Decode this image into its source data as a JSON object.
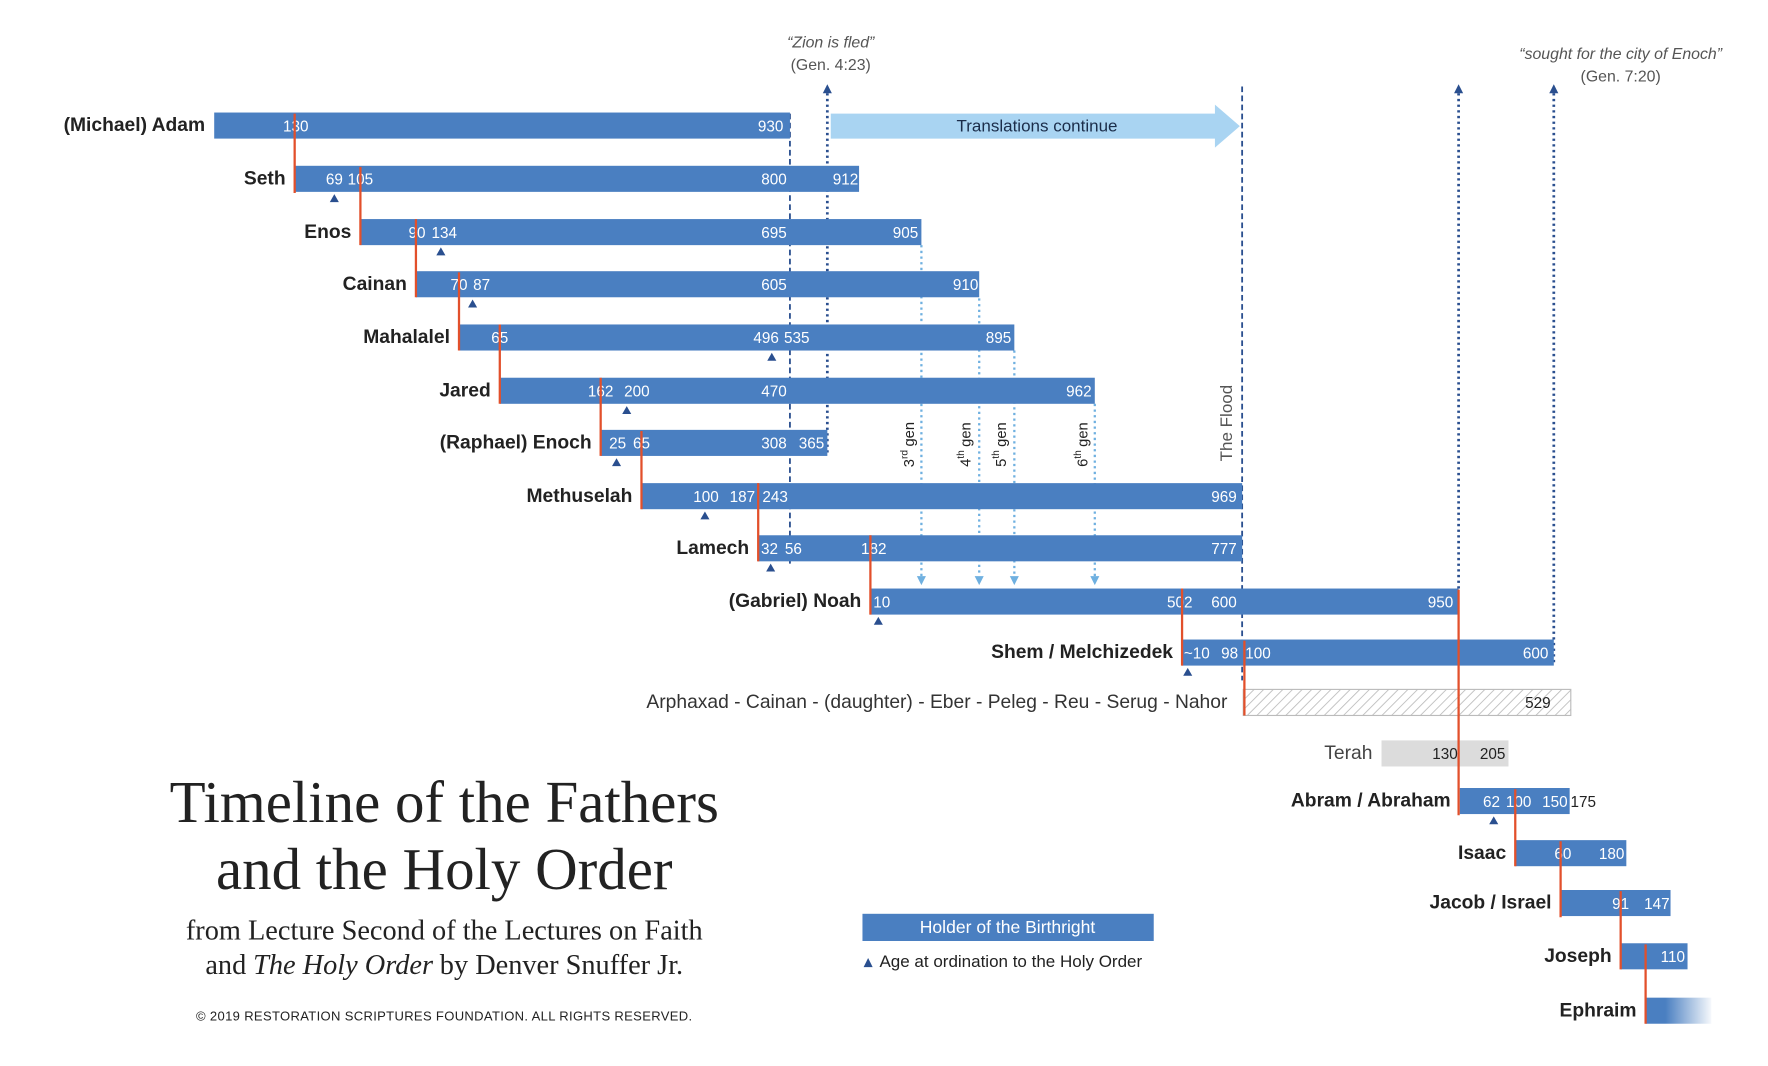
{
  "title": [
    "Timeline of the Fathers",
    "and the Holy Order"
  ],
  "subtitle": {
    "line1": "from Lecture Second of the Lectures on Faith",
    "line2": [
      "and",
      "The Holy Order",
      "by Denver Snuffer Jr."
    ]
  },
  "copyright": "© 2019 RESTORATION SCRIPTURES FOUNDATION. ALL RIGHTS RESERVED.",
  "annotations": {
    "zion": {
      "quote": "“Zion is fled”",
      "ref": "(Gen. 4:23)"
    },
    "city": {
      "quote": "“sought for the city of Enoch”",
      "ref": "(Gen. 7:20)"
    },
    "translations": "Translations continue",
    "flood": "The Flood",
    "generations": [
      {
        "num": "3",
        "suffix": "rd",
        "word": "gen"
      },
      {
        "num": "4",
        "suffix": "th",
        "word": "gen"
      },
      {
        "num": "5",
        "suffix": "th",
        "word": "gen"
      },
      {
        "num": "6",
        "suffix": "th",
        "word": "gen"
      }
    ]
  },
  "legend": {
    "birthright": "Holder of the Birthright",
    "ordination": "Age at ordination to the Holy Order"
  },
  "rows": [
    {
      "name": "(Michael) Adam",
      "labels": [
        130,
        930
      ]
    },
    {
      "name": "Seth",
      "labels": [
        69,
        105,
        800,
        912
      ]
    },
    {
      "name": "Enos",
      "labels": [
        90,
        134,
        695,
        905
      ]
    },
    {
      "name": "Cainan",
      "labels": [
        70,
        87,
        605,
        910
      ]
    },
    {
      "name": "Mahalalel",
      "labels": [
        65,
        496,
        535,
        895
      ]
    },
    {
      "name": "Jared",
      "labels": [
        162,
        200,
        470,
        962
      ]
    },
    {
      "name": "(Raphael) Enoch",
      "labels": [
        25,
        65,
        308,
        365
      ]
    },
    {
      "name": "Methuselah",
      "labels": [
        100,
        187,
        243,
        969
      ]
    },
    {
      "name": "Lamech",
      "labels": [
        32,
        56,
        182,
        777
      ]
    },
    {
      "name": "(Gabriel) Noah",
      "labels": [
        10,
        502,
        600,
        950
      ]
    },
    {
      "name": "Shem / Melchizedek",
      "labels": [
        "~10",
        98,
        100,
        600
      ]
    },
    {
      "name": "Arphaxad - Cainan - (daughter) - Eber - Peleg - Reu - Serug - Nahor",
      "labels": [
        529
      ]
    },
    {
      "name": "Terah",
      "labels": [
        130,
        205
      ]
    },
    {
      "name": "Abram / Abraham",
      "labels": [
        62,
        100,
        150,
        175
      ]
    },
    {
      "name": "Isaac",
      "labels": [
        60,
        180
      ]
    },
    {
      "name": "Jacob / Israel",
      "labels": [
        91,
        147
      ]
    },
    {
      "name": "Joseph",
      "labels": [
        110
      ]
    },
    {
      "name": "Ephraim",
      "labels": []
    }
  ]
}
